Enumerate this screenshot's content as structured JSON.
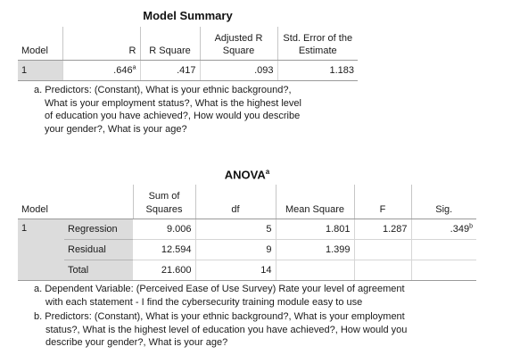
{
  "model_summary": {
    "title": "Model Summary",
    "headers": {
      "model": "Model",
      "r": "R",
      "r_square": "R Square",
      "adj_r_square_1": "Adjusted R",
      "adj_r_square_2": "Square",
      "std_err_1": "Std. Error of the",
      "std_err_2": "Estimate"
    },
    "row": {
      "model": "1",
      "r": ".646",
      "r_sup": "a",
      "r_square": ".417",
      "adj_r_square": ".093",
      "std_err": "1.183"
    },
    "footnote_lines": [
      "a. Predictors: (Constant), What is your ethnic background?,",
      "What is your employment status?, What is the highest level",
      "of education you have achieved?, How would you describe",
      "your gender?, What is your age?"
    ]
  },
  "anova": {
    "title": "ANOVA",
    "title_sup": "a",
    "headers": {
      "model": "Model",
      "ss_1": "Sum of",
      "ss_2": "Squares",
      "df": "df",
      "ms": "Mean Square",
      "f": "F",
      "sig": "Sig."
    },
    "model": "1",
    "rows": [
      {
        "source": "Regression",
        "ss": "9.006",
        "df": "5",
        "ms": "1.801",
        "f": "1.287",
        "sig": ".349",
        "sig_sup": "b"
      },
      {
        "source": "Residual",
        "ss": "12.594",
        "df": "9",
        "ms": "1.399",
        "f": "",
        "sig": ""
      },
      {
        "source": "Total",
        "ss": "21.600",
        "df": "14",
        "ms": "",
        "f": "",
        "sig": ""
      }
    ],
    "footnote_a_lines": [
      "a. Dependent Variable: (Perceived Ease of Use Survey) Rate your level of agreement",
      "with each statement - I find the cybersecurity training module easy to use"
    ],
    "footnote_b_lines": [
      "b. Predictors: (Constant), What is your ethnic background?, What is your employment",
      "status?, What is the highest level of education you have achieved?, How would you",
      "describe your gender?, What is your age?"
    ]
  }
}
